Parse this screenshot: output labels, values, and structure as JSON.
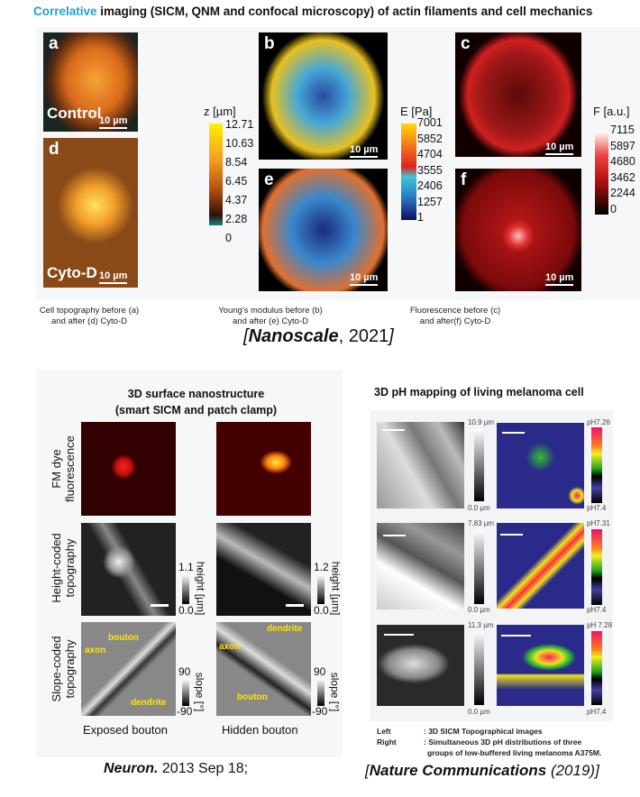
{
  "top": {
    "title_accent": "Correlative",
    "title_rest": " imaging (SICM, QNM and confocal microscopy) of actin filaments and cell mechanics",
    "accent_color": "#1aa3d9",
    "panels": [
      {
        "label": "a",
        "text": "Control",
        "scale": "10 µm"
      },
      {
        "label": "d",
        "text": "Cyto-D",
        "scale": "10 µm"
      },
      {
        "label": "b",
        "scale": "10 µm"
      },
      {
        "label": "e",
        "scale": "10 µm"
      },
      {
        "label": "c",
        "scale": "10 µm"
      },
      {
        "label": "f",
        "scale": "10 µm"
      }
    ],
    "colorbars": [
      {
        "title": "z [µm]",
        "ticks": [
          "12.71",
          "10.63",
          "8.54",
          "6.45",
          "4.37",
          "2.28",
          "0"
        ]
      },
      {
        "title": "E [Pa]",
        "ticks": [
          "7001",
          "5852",
          "4704",
          "3555",
          "2406",
          "1257",
          "1"
        ]
      },
      {
        "title": "F [a.u.]",
        "ticks": [
          "7115",
          "5897",
          "4680",
          "3462",
          "2244",
          "0"
        ]
      }
    ],
    "captions": [
      [
        "Cell topography before (a)",
        "and after (d) Cyto-D"
      ],
      [
        "Young's modulus before (b)",
        "and after (e) Cyto-D"
      ],
      [
        "Fluorescence before (c)",
        "and after(f) Cyto-D"
      ]
    ],
    "citation_journal": "Nanoscale",
    "citation_year": ", 2021",
    "citation_open": "[",
    "citation_close": "]"
  },
  "left": {
    "title": [
      "3D surface nanostructure",
      "(smart SICM and patch clamp)"
    ],
    "rows": [
      [
        "FM dye",
        "fluorescence"
      ],
      [
        "Height-coded",
        "topography"
      ],
      [
        "Slope-coded",
        "topography"
      ]
    ],
    "height_bars": [
      {
        "max": "1.1",
        "min": "0.0",
        "unit": "height [µm]"
      },
      {
        "max": "1.2",
        "min": "0.0",
        "unit": "height [µm]"
      }
    ],
    "slope_bars": [
      {
        "max": "90",
        "min": "-90",
        "unit": "slope [°]"
      },
      {
        "max": "90",
        "min": "-90",
        "unit": "slope [°]"
      }
    ],
    "annotations_left": [
      "bouton",
      "axon",
      "dendrite"
    ],
    "annotations_right": [
      "dendrite",
      "axon",
      "bouton"
    ],
    "columns": [
      "Exposed bouton",
      "Hidden bouton"
    ],
    "citation_journal": "Neuron.",
    "citation_rest": " 2013 Sep 18;"
  },
  "right": {
    "title": "3D pH mapping of living melanoma cell",
    "rows": [
      {
        "hmax": "10.9 µm",
        "hmin": "0.0 µm",
        "phtop": "pH7.26",
        "phbot": "pH7.4"
      },
      {
        "hmax": "7.83 µm",
        "hmin": "0.0 µm",
        "phtop": "pH7.31",
        "phbot": "pH7.4"
      },
      {
        "hmax": "11.3 µm",
        "hmin": "0.0 µm",
        "phtop": "pH 7.28",
        "phbot": "pH7.4"
      }
    ],
    "legend": [
      {
        "key": "Left",
        "value": ": 3D SICM Topographical images"
      },
      {
        "key": "Right",
        "value": ": Simultaneous 3D pH distributions of three"
      },
      {
        "key": "",
        "value": "groups of low-buffered living melanoma A375M."
      }
    ],
    "citation_open": "[",
    "citation_journal": "Nature Communications",
    "citation_year": " (2019)",
    "citation_close": "]"
  }
}
